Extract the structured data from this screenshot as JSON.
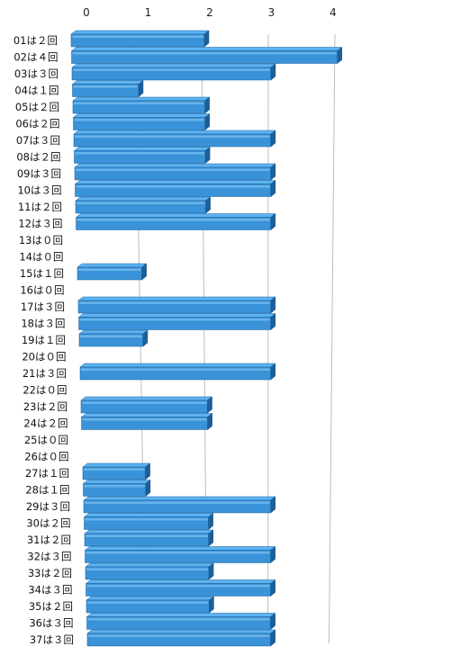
{
  "chart_data": {
    "type": "bar",
    "orientation": "horizontal",
    "style": "3d",
    "bar_color": "#3a93d8",
    "bar_top_color": "#5cb3f2",
    "bar_side_color": "#1d5f9a",
    "gridline_color": "#bdbdbd",
    "grid": true,
    "xlim": [
      0,
      4
    ],
    "xticks": [
      "0",
      "1",
      "2",
      "3",
      "4"
    ],
    "categories": [
      "01は２回",
      "02は４回",
      "03は３回",
      "04は１回",
      "05は２回",
      "06は２回",
      "07は３回",
      "08は２回",
      "09は３回",
      "10は３回",
      "11は２回",
      "12は３回",
      "13は０回",
      "14は０回",
      "15は１回",
      "16は０回",
      "17は３回",
      "18は３回",
      "19は１回",
      "20は０回",
      "21は３回",
      "22は０回",
      "23は２回",
      "24は２回",
      "25は０回",
      "26は０回",
      "27は１回",
      "28は１回",
      "29は３回",
      "30は２回",
      "31は２回",
      "32は３回",
      "33は２回",
      "34は３回",
      "35は２回",
      "36は３回",
      "37は３回"
    ],
    "values": [
      2,
      4,
      3,
      1,
      2,
      2,
      3,
      2,
      3,
      3,
      2,
      3,
      0,
      0,
      1,
      0,
      3,
      3,
      1,
      0,
      3,
      0,
      2,
      2,
      0,
      0,
      1,
      1,
      3,
      2,
      2,
      3,
      2,
      3,
      2,
      3,
      3
    ]
  }
}
